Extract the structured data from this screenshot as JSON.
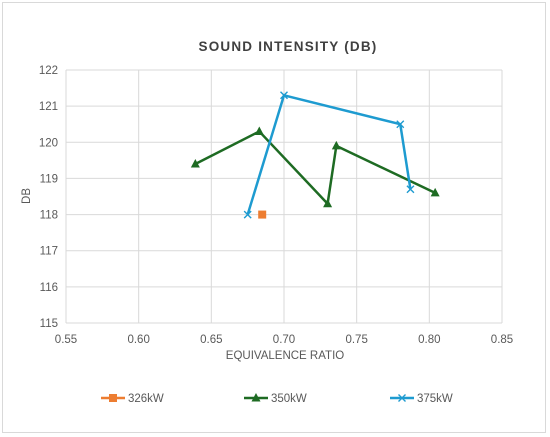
{
  "chart_data": {
    "type": "scatter",
    "title": "SOUND INTENSITY (DB)",
    "xlabel": "EQUIVALENCE RATIO",
    "ylabel": "DB",
    "xlim": [
      0.55,
      0.85
    ],
    "ylim": [
      115,
      122
    ],
    "xticks": [
      "0.55",
      "0.60",
      "0.65",
      "0.70",
      "0.75",
      "0.80",
      "0.85"
    ],
    "yticks": [
      "115",
      "116",
      "117",
      "118",
      "119",
      "120",
      "121",
      "122"
    ],
    "grid": true,
    "legend_position": "bottom",
    "series": [
      {
        "name": "326kW",
        "color": "#ed7d31",
        "marker": "square",
        "line": false,
        "points": [
          [
            0.685,
            118.0
          ]
        ]
      },
      {
        "name": "350kW",
        "color": "#1e6b23",
        "marker": "triangle",
        "line": true,
        "points": [
          [
            0.639,
            119.4
          ],
          [
            0.683,
            120.3
          ],
          [
            0.73,
            118.3
          ],
          [
            0.736,
            119.9
          ],
          [
            0.804,
            118.6
          ]
        ]
      },
      {
        "name": "375kW",
        "color": "#1e9bd0",
        "marker": "x",
        "line": true,
        "points": [
          [
            0.675,
            118.0
          ],
          [
            0.7,
            121.3
          ],
          [
            0.78,
            120.5
          ],
          [
            0.787,
            118.7
          ]
        ]
      }
    ]
  }
}
